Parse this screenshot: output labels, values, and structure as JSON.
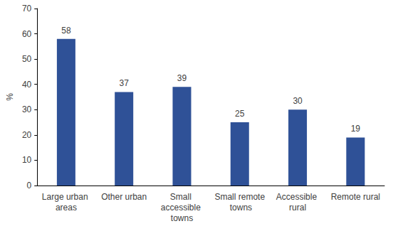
{
  "chart_data": {
    "type": "bar",
    "categories": [
      "Large urban areas",
      "Other urban",
      "Small accessible towns",
      "Small remote towns",
      "Accessible rural",
      "Remote rural"
    ],
    "values": [
      58,
      37,
      39,
      25,
      30,
      19
    ],
    "color": "#2f5197",
    "y_label": "%",
    "ylim": [
      0,
      70
    ],
    "yticks": [
      0,
      10,
      20,
      30,
      40,
      50,
      60,
      70
    ],
    "grid": false,
    "data_labels": true
  }
}
